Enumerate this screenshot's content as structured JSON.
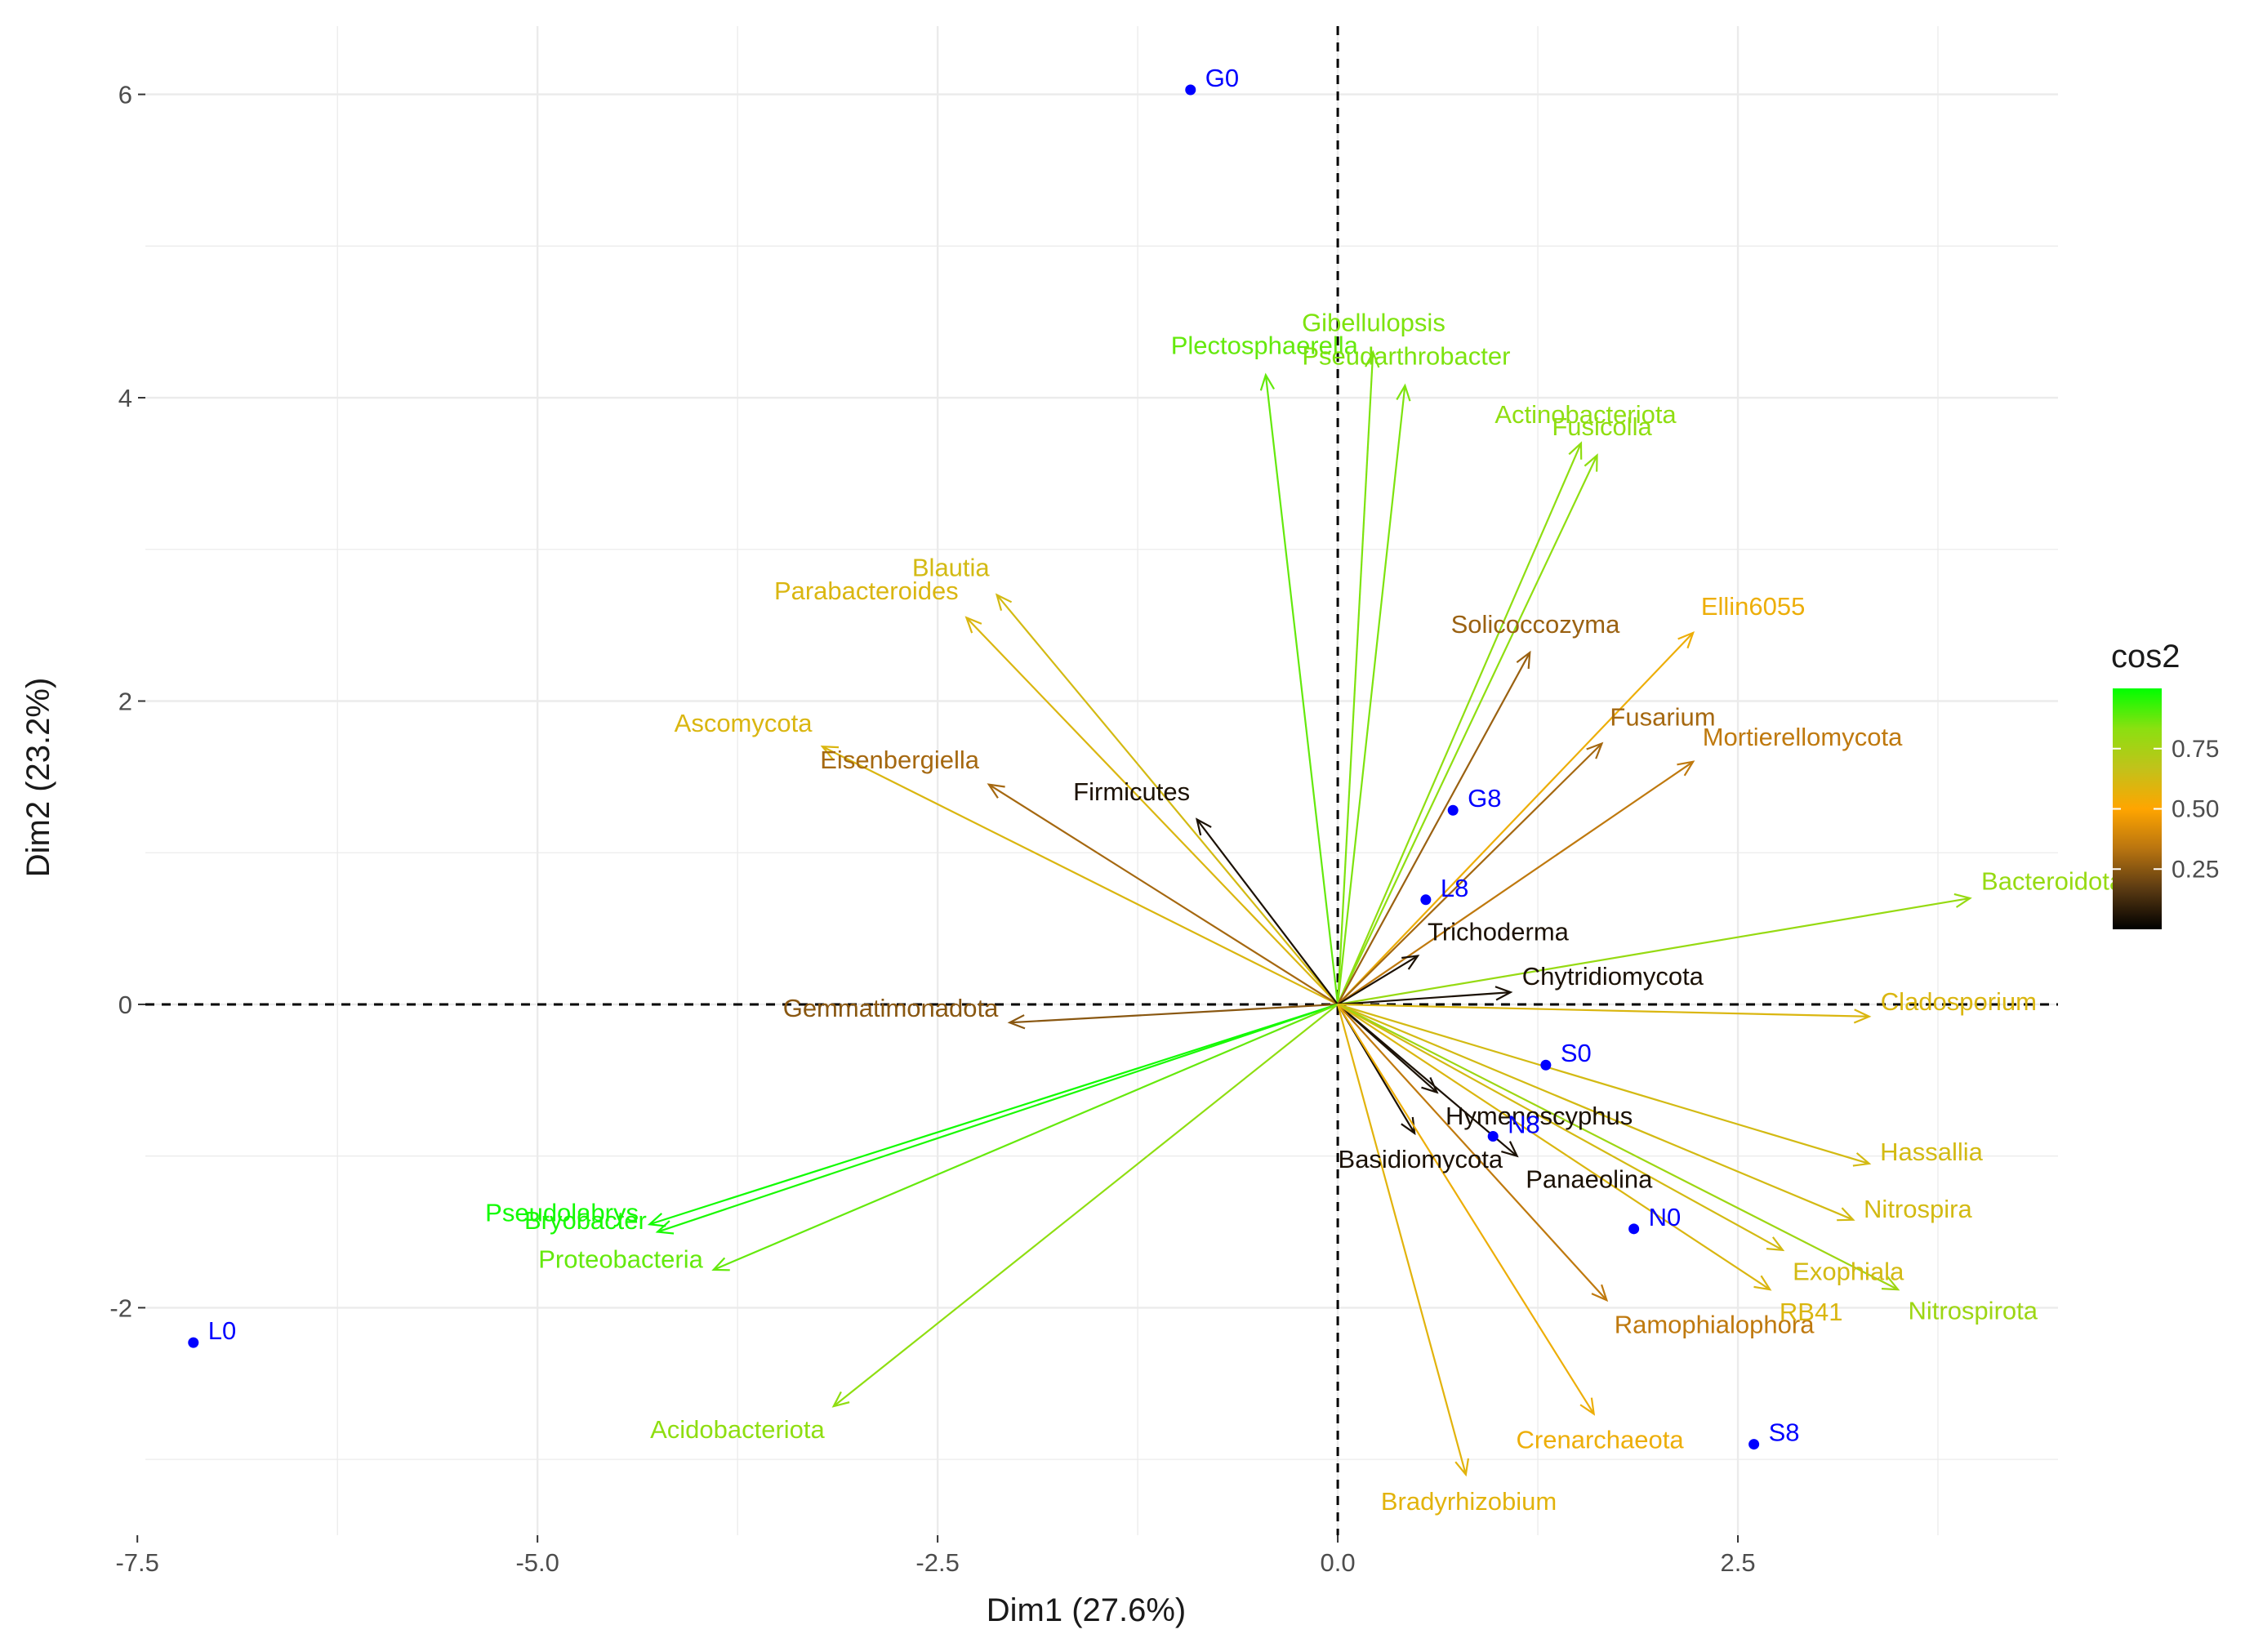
{
  "chart_data": {
    "type": "scatter",
    "subtype": "pca-biplot",
    "title": "",
    "xlabel": "Dim1 (27.6%)",
    "ylabel": "Dim2 (23.2%)",
    "xlim": [
      -7.45,
      4.5
    ],
    "ylim": [
      -3.5,
      6.45
    ],
    "xticks": [
      {
        "value": -7.5,
        "label": "-7.5"
      },
      {
        "value": -5.0,
        "label": "-5.0"
      },
      {
        "value": -2.5,
        "label": "-2.5"
      },
      {
        "value": 0.0,
        "label": "0.0"
      },
      {
        "value": 2.5,
        "label": "2.5"
      }
    ],
    "yticks": [
      {
        "value": -2,
        "label": "-2"
      },
      {
        "value": 0,
        "label": "0"
      },
      {
        "value": 2,
        "label": "2"
      },
      {
        "value": 4,
        "label": "4"
      },
      {
        "value": 6,
        "label": "6"
      }
    ],
    "grid": true,
    "reference_lines": {
      "x": 0,
      "y": 0,
      "style": "dashed"
    },
    "legend": {
      "title": "cos2",
      "position": "right",
      "colors": [
        "#000000",
        "#5a3a12",
        "#b87410",
        "#ffa500",
        "#c2c21a",
        "#8be010",
        "#00ff00"
      ],
      "range": [
        0.0,
        1.0
      ],
      "ticks": [
        {
          "value": 0.25,
          "label": "0.25"
        },
        {
          "value": 0.5,
          "label": "0.50"
        },
        {
          "value": 0.75,
          "label": "0.75"
        }
      ]
    },
    "individuals": [
      {
        "label": "G0",
        "x": -0.92,
        "y": 6.03
      },
      {
        "label": "L0",
        "x": -7.15,
        "y": -2.23
      },
      {
        "label": "G8",
        "x": 0.72,
        "y": 1.28
      },
      {
        "label": "L8",
        "x": 0.55,
        "y": 0.69
      },
      {
        "label": "S0",
        "x": 1.3,
        "y": -0.4
      },
      {
        "label": "N8",
        "x": 0.97,
        "y": -0.87
      },
      {
        "label": "N0",
        "x": 1.85,
        "y": -1.48
      },
      {
        "label": "S8",
        "x": 2.6,
        "y": -2.9
      }
    ],
    "variables": [
      {
        "label": "Gibellulopsis",
        "x": 0.22,
        "y": 4.3,
        "cos2": 0.85
      },
      {
        "label": "Plectosphaerella",
        "x": -0.45,
        "y": 4.15,
        "cos2": 0.88
      },
      {
        "label": "Pseudarthrobacter",
        "x": 0.42,
        "y": 4.08,
        "cos2": 0.85
      },
      {
        "label": "Actinobacteriota",
        "x": 1.52,
        "y": 3.7,
        "cos2": 0.82
      },
      {
        "label": "Fusicolla",
        "x": 1.62,
        "y": 3.62,
        "cos2": 0.82
      },
      {
        "label": "Blautia",
        "x": -2.13,
        "y": 2.7,
        "cos2": 0.62
      },
      {
        "label": "Parabacteroides",
        "x": -2.32,
        "y": 2.55,
        "cos2": 0.6
      },
      {
        "label": "Ellin6055",
        "x": 2.22,
        "y": 2.45,
        "cos2": 0.55
      },
      {
        "label": "Solicoccozyma",
        "x": 1.2,
        "y": 2.32,
        "cos2": 0.28
      },
      {
        "label": "Ascomycota",
        "x": -3.22,
        "y": 1.7,
        "cos2": 0.6
      },
      {
        "label": "Fusarium",
        "x": 1.65,
        "y": 1.72,
        "cos2": 0.3
      },
      {
        "label": "Mortierellomycota",
        "x": 2.22,
        "y": 1.6,
        "cos2": 0.35
      },
      {
        "label": "Eisenbergiella",
        "x": -2.18,
        "y": 1.45,
        "cos2": 0.3
      },
      {
        "label": "Firmicutes",
        "x": -0.88,
        "y": 1.22,
        "cos2": 0.05
      },
      {
        "label": "Bacteroidota",
        "x": 3.95,
        "y": 0.7,
        "cos2": 0.8
      },
      {
        "label": "Trichoderma",
        "x": 0.5,
        "y": 0.32,
        "cos2": 0.05
      },
      {
        "label": "Gemmatimonadota",
        "x": -2.05,
        "y": -0.12,
        "cos2": 0.25
      },
      {
        "label": "Chytridiomycota",
        "x": 1.08,
        "y": 0.08,
        "cos2": 0.05
      },
      {
        "label": "Cladosporium",
        "x": 3.32,
        "y": -0.08,
        "cos2": 0.6
      },
      {
        "label": "Hymenoscyphus",
        "x": 0.62,
        "y": -0.58,
        "cos2": 0.05
      },
      {
        "label": "Basidiomycota",
        "x": 0.48,
        "y": -0.85,
        "cos2": 0.05
      },
      {
        "label": "Hassallia",
        "x": 3.32,
        "y": -1.05,
        "cos2": 0.62
      },
      {
        "label": "Nitrospira",
        "x": 3.22,
        "y": -1.42,
        "cos2": 0.62
      },
      {
        "label": "Panaeolina",
        "x": 1.12,
        "y": -1.0,
        "cos2": 0.05
      },
      {
        "label": "Pseudolabrys",
        "x": -4.3,
        "y": -1.45,
        "cos2": 0.98
      },
      {
        "label": "Bryobacter",
        "x": -4.25,
        "y": -1.5,
        "cos2": 0.97
      },
      {
        "label": "Exophiala",
        "x": 2.78,
        "y": -1.62,
        "cos2": 0.62
      },
      {
        "label": "Proteobacteria",
        "x": -3.9,
        "y": -1.75,
        "cos2": 0.88
      },
      {
        "label": "Nitrospirota",
        "x": 3.5,
        "y": -1.88,
        "cos2": 0.78
      },
      {
        "label": "Ramophialophora",
        "x": 1.68,
        "y": -1.95,
        "cos2": 0.35
      },
      {
        "label": "RB41",
        "x": 2.7,
        "y": -1.88,
        "cos2": 0.6
      },
      {
        "label": "Acidobacteriota",
        "x": -3.15,
        "y": -2.65,
        "cos2": 0.82
      },
      {
        "label": "Crenarchaeota",
        "x": 1.6,
        "y": -2.7,
        "cos2": 0.55
      },
      {
        "label": "Bradyrhizobium",
        "x": 0.8,
        "y": -3.1,
        "cos2": 0.58
      }
    ]
  }
}
